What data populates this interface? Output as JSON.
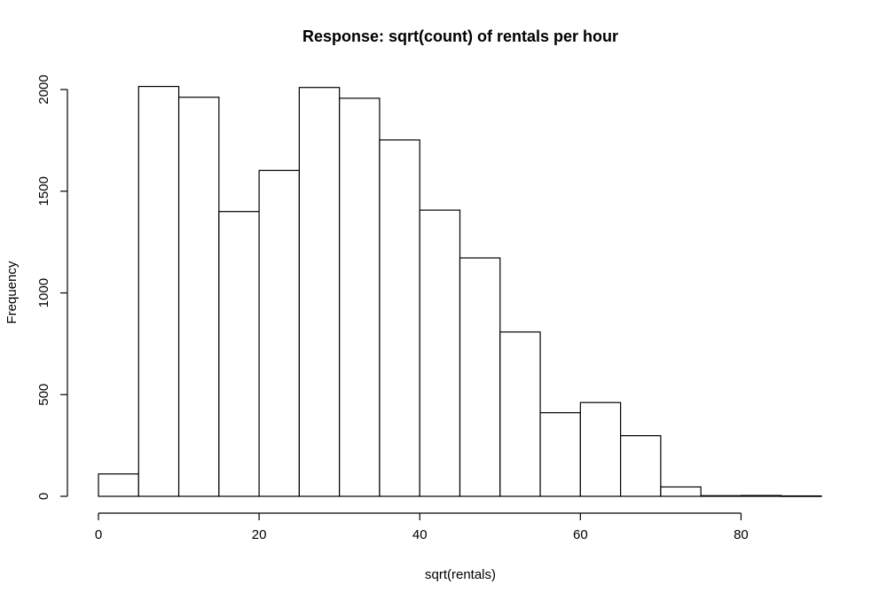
{
  "chart_data": {
    "type": "bar",
    "title": "Response: sqrt(count) of rentals per hour",
    "xlabel": "sqrt(rentals)",
    "ylabel": "Frequency",
    "bin_width": 5,
    "bins": [
      {
        "start": 0,
        "end": 5,
        "value": 110
      },
      {
        "start": 5,
        "end": 10,
        "value": 2015
      },
      {
        "start": 10,
        "end": 15,
        "value": 1962
      },
      {
        "start": 15,
        "end": 20,
        "value": 1400
      },
      {
        "start": 20,
        "end": 25,
        "value": 1602
      },
      {
        "start": 25,
        "end": 30,
        "value": 2010
      },
      {
        "start": 30,
        "end": 35,
        "value": 1957
      },
      {
        "start": 35,
        "end": 40,
        "value": 1752
      },
      {
        "start": 40,
        "end": 45,
        "value": 1407
      },
      {
        "start": 45,
        "end": 50,
        "value": 1172
      },
      {
        "start": 50,
        "end": 55,
        "value": 808
      },
      {
        "start": 55,
        "end": 60,
        "value": 411
      },
      {
        "start": 60,
        "end": 65,
        "value": 461
      },
      {
        "start": 65,
        "end": 70,
        "value": 298
      },
      {
        "start": 70,
        "end": 75,
        "value": 46
      },
      {
        "start": 75,
        "end": 80,
        "value": 3
      },
      {
        "start": 80,
        "end": 85,
        "value": 4
      },
      {
        "start": 85,
        "end": 90,
        "value": 2
      }
    ],
    "xlim": [
      0,
      90
    ],
    "ylim": [
      0,
      2050
    ],
    "xticks": [
      0,
      20,
      40,
      60,
      80
    ],
    "yticks": [
      0,
      500,
      1000,
      1500,
      2000
    ],
    "grid": false,
    "legend": "none"
  }
}
